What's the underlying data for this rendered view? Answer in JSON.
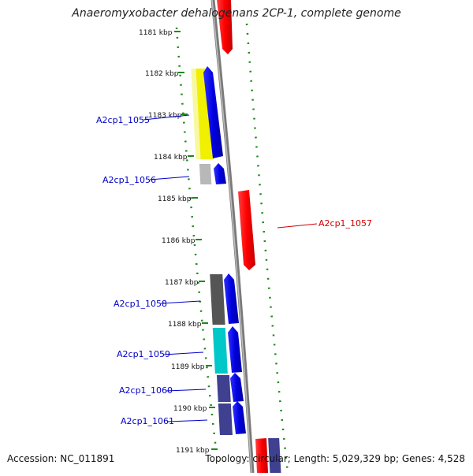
{
  "title": "Anaeromyxobacter dehalogenans 2CP-1, complete genome",
  "footer": {
    "accession": "Accession: NC_011891",
    "summary": "Topology: circular; Length: 5,029,329 bp; Genes: 4,528"
  },
  "ticks": [
    "1181 kbp",
    "1182 kbp",
    "1183 kbp",
    "1184 kbp",
    "1185 kbp",
    "1186 kbp",
    "1187 kbp",
    "1188 kbp",
    "1189 kbp",
    "1190 kbp",
    "1191 kbp"
  ],
  "gene_labels": [
    {
      "text": "A2cp1_1055",
      "color": "#0000c8"
    },
    {
      "text": "A2cp1_1056",
      "color": "#0000c8"
    },
    {
      "text": "A2cp1_1057",
      "color": "#d00000"
    },
    {
      "text": "A2cp1_1058",
      "color": "#0000c8"
    },
    {
      "text": "A2cp1_1059",
      "color": "#0000c8"
    },
    {
      "text": "A2cp1_1060",
      "color": "#0000c8"
    },
    {
      "text": "A2cp1_1061",
      "color": "#0000c8"
    }
  ],
  "colors": {
    "backbone": "#8a8a8a",
    "forward_gene": "#0000e0",
    "reverse_gene": "#e00000",
    "gc_skew_dots": "#1a8a1a",
    "cog_yellow": "#f0f000",
    "cog_grey": "#b0b0b0",
    "cog_dark": "#555555",
    "cog_cyan": "#00c8c8",
    "cog_purple": "#404090"
  }
}
